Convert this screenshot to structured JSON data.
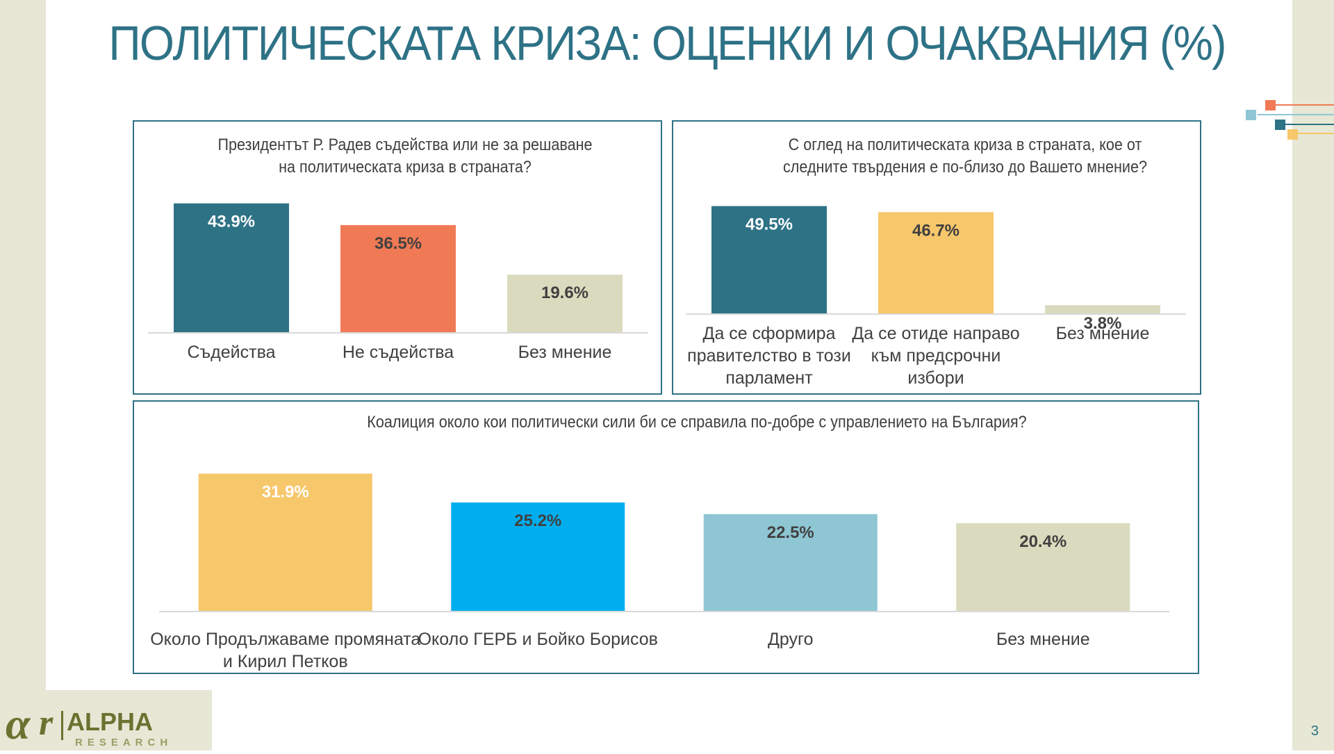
{
  "title": "ПОЛИТИЧЕСКАТА КРИЗА: ОЦЕНКИ И ОЧАКВАНИЯ (%)",
  "page_number": "3",
  "logo": {
    "brand": "ALPHA",
    "sub": "RESEARCH"
  },
  "colors": {
    "teal": "#2e7286",
    "accent_title": "#2e7286"
  },
  "chart_data": [
    {
      "type": "bar",
      "title": "Президентът Р. Радев съдейства или не за решаване на политическата криза в страната?",
      "title_lines": [
        "Президентът Р. Радев съдейства или не за решаване",
        "на политическата криза в страната?"
      ],
      "categories": [
        "Съдейства",
        "Не съдейства",
        "Без мнение"
      ],
      "category_lines": [
        [
          "Съдейства"
        ],
        [
          "Не съдейства"
        ],
        [
          "Без мнение"
        ]
      ],
      "values": [
        43.9,
        36.5,
        19.6
      ],
      "labels": [
        "43.9%",
        "36.5%",
        "19.6%"
      ],
      "colors": [
        "#2e7286",
        "#f07a55",
        "#dadbbe"
      ],
      "label_colors": [
        "#ffffff",
        "#404040",
        "#404040"
      ],
      "ylim": [
        0,
        45
      ]
    },
    {
      "type": "bar",
      "title": "С оглед на политическата криза в страната, кое от следните твърдения е по-близо до Вашето мнение?",
      "title_lines": [
        "С оглед на политическата криза в страната, кое от",
        "следните твърдения е по-близо до Вашето мнение?"
      ],
      "categories": [
        "Да се сформира правителство в този парламент",
        "Да се отиде направо към предсрочни избори",
        "Без мнение"
      ],
      "category_lines": [
        [
          "Да се сформира",
          "правителство в този",
          "парламент"
        ],
        [
          "Да се отиде направо",
          "към предсрочни",
          "избори"
        ],
        [
          "Без мнение"
        ]
      ],
      "values": [
        49.5,
        46.7,
        3.8
      ],
      "labels": [
        "49.5%",
        "46.7%",
        "3.8%"
      ],
      "colors": [
        "#2e7286",
        "#f7c76b",
        "#dadbbe"
      ],
      "label_colors": [
        "#ffffff",
        "#404040",
        "#404040"
      ],
      "ylim": [
        0,
        50
      ]
    },
    {
      "type": "bar",
      "title": "Коалиция около кои политически сили би се справила по-добре с управлението на България?",
      "title_lines": [
        "Коалиция около кои политически сили би се справила по-добре с управлението на България?"
      ],
      "categories": [
        "Около Продължаваме промяната и Кирил Петков",
        "Около ГЕРБ и Бойко Борисов",
        "Друго",
        "Без мнение"
      ],
      "category_lines": [
        [
          "Около Продължаваме промяната",
          "и Кирил Петков"
        ],
        [
          "Около ГЕРБ и Бойко Борисов"
        ],
        [
          "Друго"
        ],
        [
          "Без мнение"
        ]
      ],
      "values": [
        31.9,
        25.2,
        22.5,
        20.4
      ],
      "labels": [
        "31.9%",
        "25.2%",
        "22.5%",
        "20.4%"
      ],
      "colors": [
        "#f7c76b",
        "#00aeef",
        "#8ec6d3",
        "#dadbbe"
      ],
      "label_colors": [
        "#ffffff",
        "#404040",
        "#404040",
        "#404040"
      ],
      "ylim": [
        0,
        32
      ]
    }
  ]
}
